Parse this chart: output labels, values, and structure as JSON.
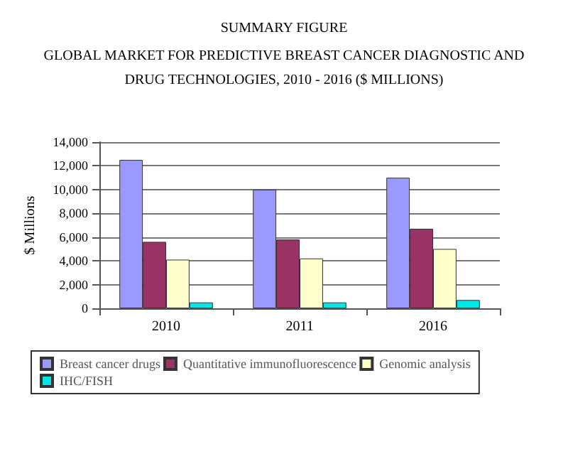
{
  "chart_data": {
    "type": "bar",
    "title": "SUMMARY FIGURE",
    "subtitle": "GLOBAL MARKET FOR PREDICTIVE BREAST CANCER DIAGNOSTIC AND\nDRUG TECHNOLOGIES, 2010 - 2016 ($ MILLIONS)",
    "ylabel": "$ Millions",
    "categories": [
      "2010",
      "2011",
      "2016"
    ],
    "series": [
      {
        "name": "Breast cancer drugs",
        "color": "#9999ff",
        "values": [
          12500,
          10000,
          11000
        ]
      },
      {
        "name": "Quantitative immunofluorescence",
        "color": "#993366",
        "values": [
          5600,
          5800,
          6700
        ]
      },
      {
        "name": "Genomic analysis",
        "color": "#ffffcc",
        "values": [
          4100,
          4200,
          5000
        ]
      },
      {
        "name": "IHC/FISH",
        "color": "#00e5e5",
        "values": [
          500,
          500,
          700
        ]
      }
    ],
    "ylim": [
      0,
      14000
    ],
    "yticks": [
      0,
      {
        "value": 2000,
        "label": "2,000"
      },
      {
        "value": 4000,
        "label": "4,000"
      },
      {
        "value": 6000,
        "label": "6,000"
      },
      {
        "value": 8000,
        "label": "8,000"
      },
      {
        "value": 10000,
        "label": "10,000"
      },
      {
        "value": 12000,
        "label": "12,000"
      },
      {
        "value": 14000,
        "label": "14,000"
      }
    ],
    "grid": "y",
    "legend": "bottom"
  }
}
